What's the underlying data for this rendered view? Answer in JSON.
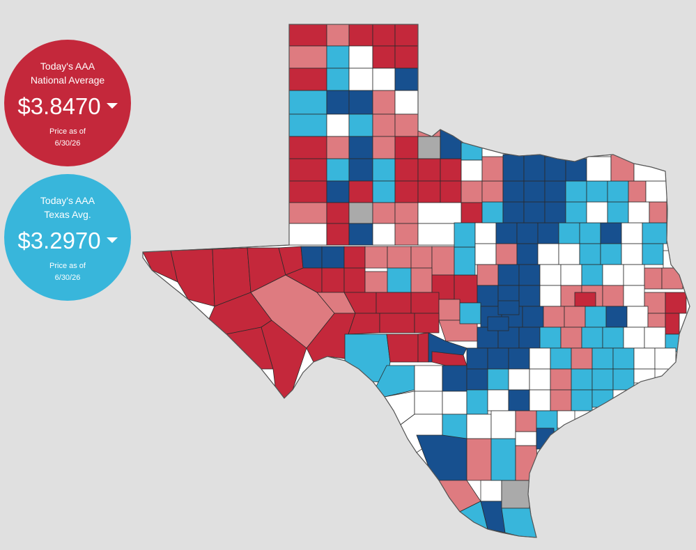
{
  "colors": {
    "dark_red": "#c4283b",
    "light_red": "#de7b80",
    "dark_blue": "#17508f",
    "light_blue": "#38b6db",
    "white": "#ffffff",
    "gray": "#aaaaaa",
    "background": "#e0e0e0"
  },
  "national": {
    "line1": "Today's AAA",
    "line2": "National Average",
    "price": "$3.8470",
    "trend": "down",
    "asof_line1": "Price as of",
    "asof_line2": "6/30/26",
    "color": "#c4283b"
  },
  "texas": {
    "line1": "Today's AAA",
    "line2": "Texas Avg.",
    "price": "$3.2970",
    "trend": "down",
    "asof_line1": "Price as of",
    "asof_line2": "6/30/26",
    "color": "#38b6db"
  }
}
